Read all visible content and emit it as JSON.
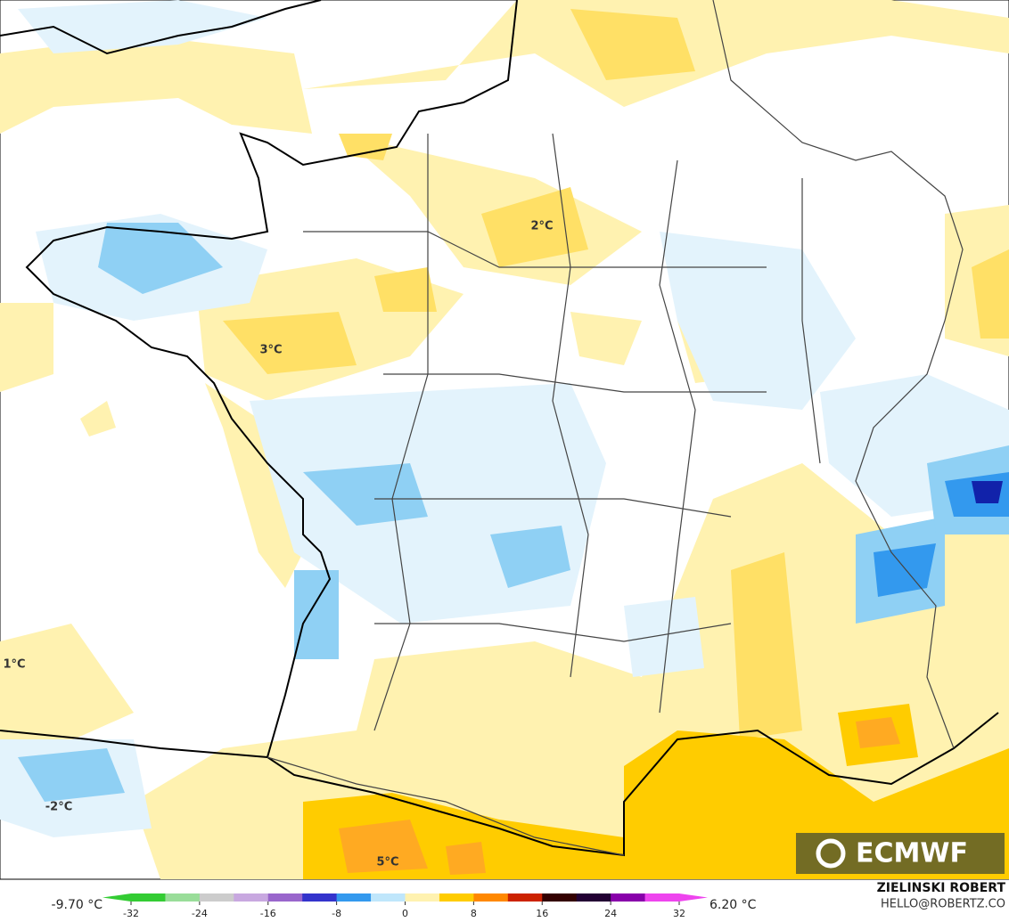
{
  "map": {
    "labels": [
      "2°C",
      "3°C",
      "1°C",
      "-2°C",
      "5°C"
    ],
    "logo": "ECMWF",
    "colorbar": {
      "min_label": "-9.70 °C",
      "max_label": "6.20 °C",
      "lim": [
        -32,
        32
      ],
      "ticks": [
        -32,
        -24,
        -16,
        -8,
        0,
        8,
        16,
        24,
        32
      ],
      "colors": [
        "#33cc33",
        "#99dd99",
        "#cccccc",
        "#c8a8e0",
        "#9966cc",
        "#3333cc",
        "#3399ee",
        "#bfe6fb",
        "#fff2b0",
        "#ffcc00",
        "#ff8800",
        "#cc2200",
        "#330000",
        "#220033",
        "#8800aa",
        "#ee44ee"
      ]
    },
    "credits": [
      "ZIELINSKI ROBERT",
      "HELLO@ROBERTZ.CO"
    ]
  }
}
